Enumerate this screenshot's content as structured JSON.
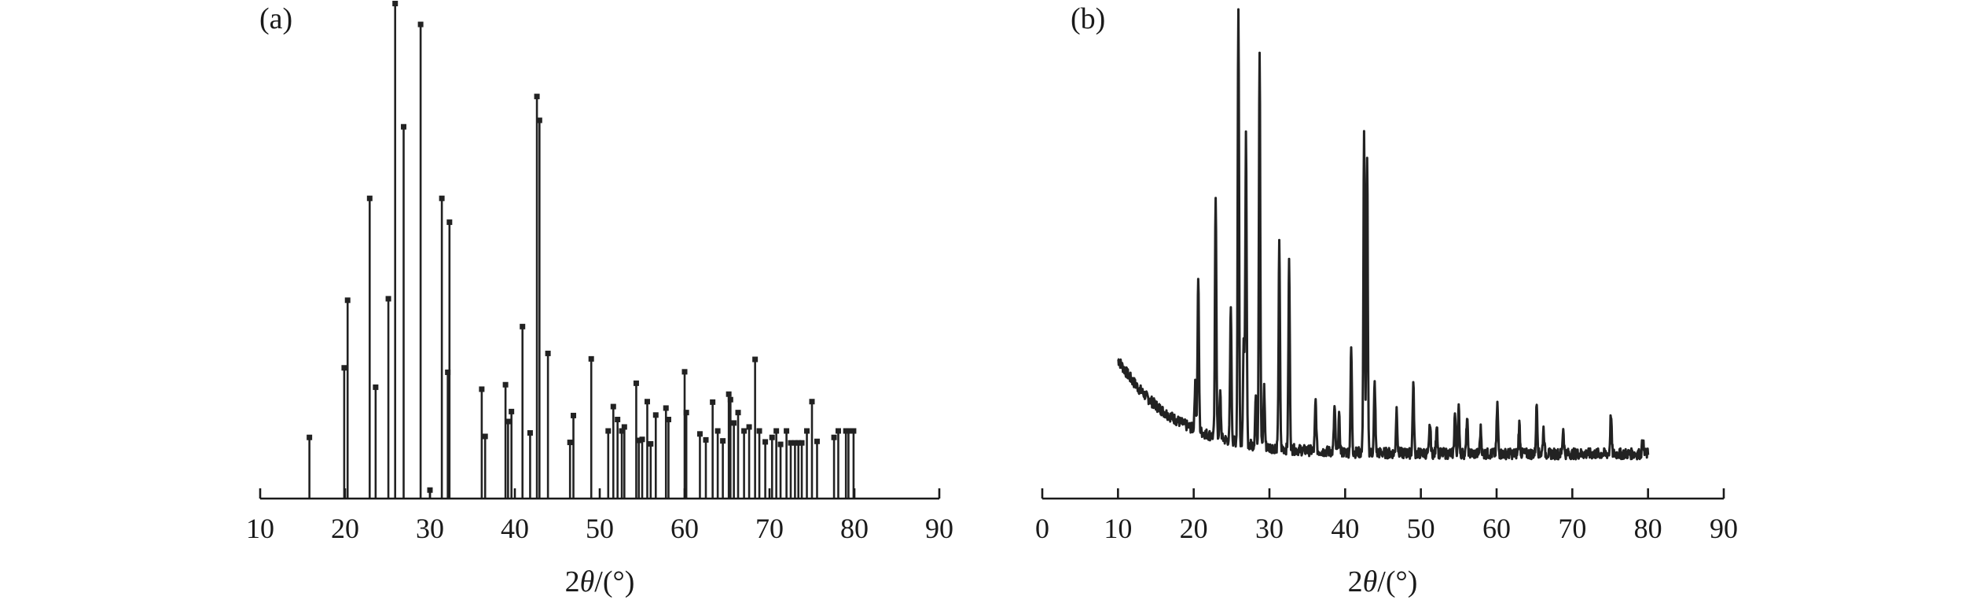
{
  "chart_data": [
    {
      "type": "bar",
      "panel_label": "(a)",
      "xlabel_prefix": "2",
      "xlabel_symbol": "θ",
      "xlabel_suffix": "/(°)",
      "ylabel": "",
      "xlim": [
        10,
        90
      ],
      "ylim": [
        0,
        100
      ],
      "xticks": [
        10,
        20,
        30,
        40,
        50,
        60,
        70,
        80,
        90
      ],
      "grid": false,
      "x": [
        15.8,
        19.9,
        20.3,
        22.9,
        23.6,
        25.1,
        25.9,
        26.9,
        28.9,
        30.0,
        31.4,
        32.1,
        32.3,
        36.1,
        36.5,
        38.9,
        39.2,
        39.6,
        40.9,
        41.8,
        42.6,
        42.9,
        43.9,
        46.5,
        46.9,
        49.0,
        51.0,
        51.6,
        52.1,
        52.6,
        52.9,
        54.3,
        54.6,
        55.0,
        55.6,
        56.0,
        56.6,
        57.8,
        58.1,
        60.0,
        60.2,
        61.8,
        62.5,
        63.3,
        63.9,
        64.5,
        65.2,
        65.4,
        65.8,
        66.3,
        67.0,
        67.6,
        68.3,
        68.8,
        69.5,
        70.3,
        70.8,
        71.3,
        72.0,
        72.5,
        73.0,
        73.4,
        73.8,
        74.4,
        75.0,
        75.6,
        77.6,
        78.1,
        79.0,
        79.3,
        79.9
      ],
      "values": [
        12.7,
        26.7,
        40.3,
        60.8,
        22.8,
        40.6,
        100.0,
        75.2,
        95.8,
        2.1,
        60.8,
        25.8,
        56.0,
        22.4,
        12.9,
        23.3,
        15.9,
        17.9,
        35.0,
        13.6,
        81.3,
        76.5,
        29.6,
        11.7,
        17.1,
        28.5,
        14.0,
        18.9,
        16.3,
        14.0,
        14.8,
        23.6,
        12.1,
        12.3,
        19.9,
        11.4,
        17.2,
        18.6,
        16.3,
        25.9,
        17.7,
        13.4,
        12.2,
        19.8,
        14.0,
        12.0,
        21.4,
        20.3,
        15.6,
        17.7,
        14.0,
        14.8,
        28.4,
        14.0,
        11.8,
        12.7,
        14.0,
        11.3,
        14.0,
        11.6,
        11.6,
        11.6,
        11.6,
        14.0,
        19.9,
        11.9,
        12.7,
        14.0,
        14.0,
        14.0,
        14.0
      ]
    },
    {
      "type": "line",
      "panel_label": "(b)",
      "xlabel_prefix": "2",
      "xlabel_symbol": "θ",
      "xlabel_suffix": "/(°)",
      "ylabel": "",
      "xlim": [
        0,
        90
      ],
      "ylim": [
        0,
        100
      ],
      "xticks": [
        0,
        10,
        20,
        30,
        40,
        50,
        60,
        70,
        80,
        90
      ],
      "grid": false,
      "x_range": [
        10,
        80
      ],
      "background": {
        "start": 28,
        "end": 9,
        "decay": 7.5
      },
      "peaks": [
        {
          "x": 20.2,
          "h": 9
        },
        {
          "x": 20.6,
          "h": 31
        },
        {
          "x": 22.9,
          "h": 49
        },
        {
          "x": 23.5,
          "h": 9
        },
        {
          "x": 24.9,
          "h": 27
        },
        {
          "x": 25.9,
          "h": 87
        },
        {
          "x": 26.6,
          "h": 21
        },
        {
          "x": 26.9,
          "h": 62
        },
        {
          "x": 28.2,
          "h": 10
        },
        {
          "x": 28.7,
          "h": 80
        },
        {
          "x": 29.3,
          "h": 12
        },
        {
          "x": 31.3,
          "h": 41
        },
        {
          "x": 32.6,
          "h": 38
        },
        {
          "x": 36.1,
          "h": 10
        },
        {
          "x": 38.6,
          "h": 9
        },
        {
          "x": 39.2,
          "h": 7
        },
        {
          "x": 40.8,
          "h": 21
        },
        {
          "x": 42.5,
          "h": 64
        },
        {
          "x": 42.9,
          "h": 59
        },
        {
          "x": 43.9,
          "h": 14
        },
        {
          "x": 46.8,
          "h": 9
        },
        {
          "x": 49.0,
          "h": 14
        },
        {
          "x": 51.2,
          "h": 6
        },
        {
          "x": 52.1,
          "h": 6
        },
        {
          "x": 54.5,
          "h": 8
        },
        {
          "x": 55.0,
          "h": 9
        },
        {
          "x": 56.1,
          "h": 7
        },
        {
          "x": 57.9,
          "h": 5
        },
        {
          "x": 60.1,
          "h": 10
        },
        {
          "x": 63.0,
          "h": 6
        },
        {
          "x": 65.3,
          "h": 10
        },
        {
          "x": 66.2,
          "h": 5
        },
        {
          "x": 68.8,
          "h": 5
        },
        {
          "x": 75.1,
          "h": 8
        },
        {
          "x": 79.3,
          "h": 3
        }
      ]
    }
  ]
}
